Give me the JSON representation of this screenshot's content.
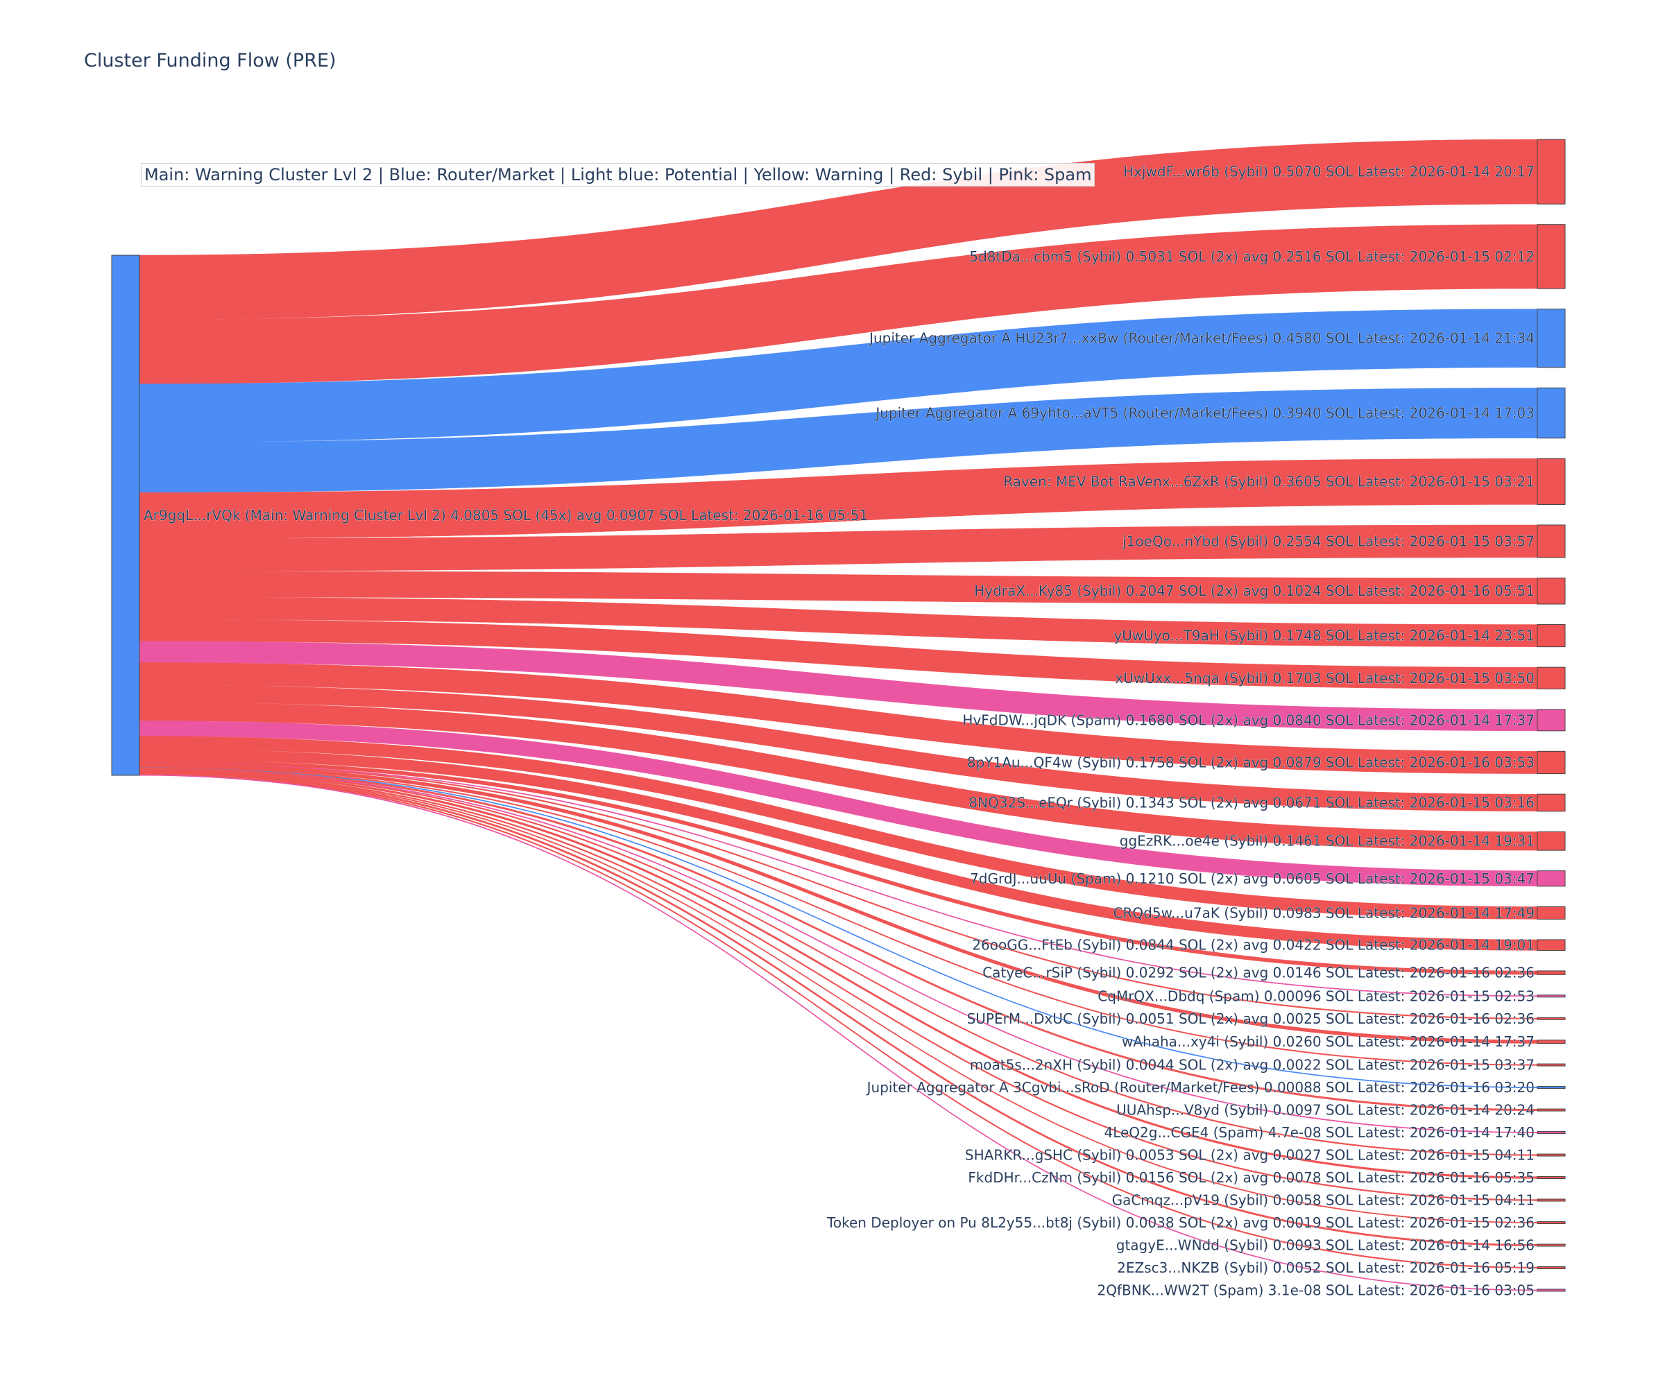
{
  "chart_data": {
    "type": "sankey",
    "title": "Cluster Funding Flow (PRE)",
    "annotation": "Main: Warning Cluster Lvl 2  |  Blue: Router/Market | Light blue: Potential | Yellow: Warning | Red: Sybil | Pink: Spam",
    "colors": {
      "main": "#4c8cf5",
      "router": "#4c8cf5",
      "sybil": "#ef5353",
      "spam": "#eb56a2",
      "node_border": "#444444"
    },
    "source": {
      "label": "Ar9gqL...rVQk (Main: Warning Cluster Lvl 2) 4.0805 SOL (45x) avg 0.0907 SOL Latest: 2026-01-16 05:51",
      "category": "main",
      "value": 4.0805
    },
    "targets": [
      {
        "label": "HxjwdF...wr6b (Sybil) 0.5070 SOL Latest: 2026-01-14 20:17",
        "category": "sybil",
        "value": 0.507
      },
      {
        "label": "5d8tDa...cbm5 (Sybil) 0.5031 SOL (2x) avg 0.2516 SOL Latest: 2026-01-15 02:12",
        "category": "sybil",
        "value": 0.5031
      },
      {
        "label": "Jupiter Aggregator A HU23r7...xxBw (Router/Market/Fees) 0.4580 SOL Latest: 2026-01-14 21:34",
        "category": "router",
        "value": 0.458
      },
      {
        "label": "Jupiter Aggregator A 69yhto...aVT5 (Router/Market/Fees) 0.3940 SOL Latest: 2026-01-14 17:03",
        "category": "router",
        "value": 0.394
      },
      {
        "label": "Raven: MEV Bot RaVenx...6ZxR (Sybil) 0.3605 SOL Latest: 2026-01-15 03:21",
        "category": "sybil",
        "value": 0.3605
      },
      {
        "label": "j1oeQo...nYbd (Sybil) 0.2554 SOL Latest: 2026-01-15 03:57",
        "category": "sybil",
        "value": 0.2554
      },
      {
        "label": "HydraX...Ky85 (Sybil) 0.2047 SOL (2x) avg 0.1024 SOL Latest: 2026-01-16 05:51",
        "category": "sybil",
        "value": 0.2047
      },
      {
        "label": "yUwUyo...T9aH (Sybil) 0.1748 SOL Latest: 2026-01-14 23:51",
        "category": "sybil",
        "value": 0.1748
      },
      {
        "label": "xUwUxx...5nqa (Sybil) 0.1703 SOL Latest: 2026-01-15 03:50",
        "category": "sybil",
        "value": 0.1703
      },
      {
        "label": "HvFdDW...jqDK (Spam) 0.1680 SOL (2x) avg 0.0840 SOL Latest: 2026-01-14 17:37",
        "category": "spam",
        "value": 0.168
      },
      {
        "label": "8pY1Au...QF4w (Sybil) 0.1758 SOL (2x) avg 0.0879 SOL Latest: 2026-01-16 03:53",
        "category": "sybil",
        "value": 0.1758
      },
      {
        "label": "8NQ32S...eEQr (Sybil) 0.1343 SOL (2x) avg 0.0671 SOL Latest: 2026-01-15 03:16",
        "category": "sybil",
        "value": 0.1343
      },
      {
        "label": "ggEzRK...oe4e (Sybil) 0.1461 SOL Latest: 2026-01-14 19:31",
        "category": "sybil",
        "value": 0.1461
      },
      {
        "label": "7dGrdJ...uuUu (Spam) 0.1210 SOL (2x) avg 0.0605 SOL Latest: 2026-01-15 03:47",
        "category": "spam",
        "value": 0.121
      },
      {
        "label": "CRQd5w...u7aK (Sybil) 0.0983 SOL Latest: 2026-01-14 17:49",
        "category": "sybil",
        "value": 0.0983
      },
      {
        "label": "26ooGG...FtEb (Sybil) 0.0844 SOL (2x) avg 0.0422 SOL Latest: 2026-01-14 19:01",
        "category": "sybil",
        "value": 0.0844
      },
      {
        "label": "CatyeC...rSiP (Sybil) 0.0292 SOL (2x) avg 0.0146 SOL Latest: 2026-01-16 02:36",
        "category": "sybil",
        "value": 0.0292
      },
      {
        "label": "CqMrQX...Dbdq (Spam) 0.00096 SOL Latest: 2026-01-15 02:53",
        "category": "spam",
        "value": 0.00096
      },
      {
        "label": "SUPErM...DxUC (Sybil) 0.0051 SOL (2x) avg 0.0025 SOL Latest: 2026-01-16 02:36",
        "category": "sybil",
        "value": 0.0051
      },
      {
        "label": "wAhaha...xy4i (Sybil) 0.0260 SOL Latest: 2026-01-14 17:37",
        "category": "sybil",
        "value": 0.026
      },
      {
        "label": "moat5s...2nXH (Sybil) 0.0044 SOL (2x) avg 0.0022 SOL Latest: 2026-01-15 03:37",
        "category": "sybil",
        "value": 0.0044
      },
      {
        "label": "Jupiter Aggregator A 3Cgvbi...sRoD (Router/Market/Fees) 0.00088 SOL Latest: 2026-01-16 03:20",
        "category": "router",
        "value": 0.00088
      },
      {
        "label": "UUAhsp...V8yd (Sybil) 0.0097 SOL Latest: 2026-01-14 20:24",
        "category": "sybil",
        "value": 0.0097
      },
      {
        "label": "4LeQ2g...CGE4 (Spam) 4.7e-08 SOL Latest: 2026-01-14 17:40",
        "category": "spam",
        "value": 4.7e-08
      },
      {
        "label": "SHARKR...gSHC (Sybil) 0.0053 SOL (2x) avg 0.0027 SOL Latest: 2026-01-15 04:11",
        "category": "sybil",
        "value": 0.0053
      },
      {
        "label": "FkdDHr...CzNm (Sybil) 0.0156 SOL (2x) avg 0.0078 SOL Latest: 2026-01-16 05:35",
        "category": "sybil",
        "value": 0.0156
      },
      {
        "label": "GaCmqz...pV19 (Sybil) 0.0058 SOL Latest: 2026-01-15 04:11",
        "category": "sybil",
        "value": 0.0058
      },
      {
        "label": "Token Deployer on Pu 8L2y55...bt8j (Sybil) 0.0038 SOL (2x) avg 0.0019 SOL Latest: 2026-01-15 02:36",
        "category": "sybil",
        "value": 0.0038
      },
      {
        "label": "gtagyE...WNdd (Sybil) 0.0093 SOL Latest: 2026-01-14 16:56",
        "category": "sybil",
        "value": 0.0093
      },
      {
        "label": "2EZsc3...NKZB (Sybil) 0.0052 SOL Latest: 2026-01-16 05:19",
        "category": "sybil",
        "value": 0.0052
      },
      {
        "label": "2QfBNK...WW2T (Spam) 3.1e-08 SOL Latest: 2026-01-16 03:05",
        "category": "spam",
        "value": 3.1e-08
      }
    ]
  }
}
